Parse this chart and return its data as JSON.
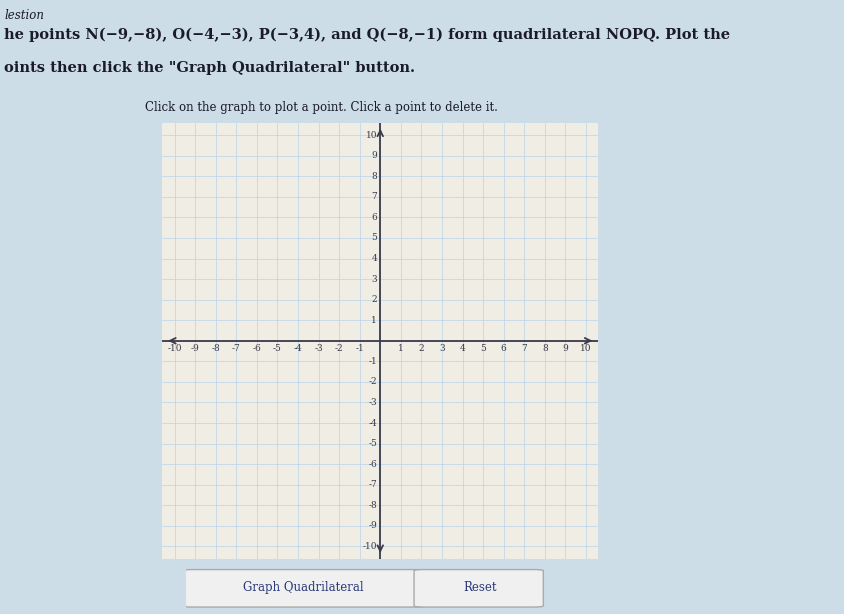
{
  "title_line1": "lestion",
  "title_line2": "he points N(−9,−8), O(−4,−3), P(−3,4), and Q(−8,−1) form quadrilateral NOPQ. Plot the",
  "title_line3": "oints then click the \"Graph Quadrilateral\" button.",
  "subtitle": "Click on the graph to plot a point. Click a point to delete it.",
  "xmin": -10,
  "xmax": 10,
  "ymin": -10,
  "ymax": 10,
  "grid_color": "#b8d4e8",
  "axis_color": "#3a3a4a",
  "background_color": "#ccdde8",
  "graph_bg": "#f0ede5",
  "button1": "Graph Quadrilateral",
  "button2": "Reset",
  "button_text_color": "#2a3a7a",
  "button_edge_color": "#aaaaaa",
  "tick_fontsize": 6.5,
  "text_color": "#1a1a2a"
}
